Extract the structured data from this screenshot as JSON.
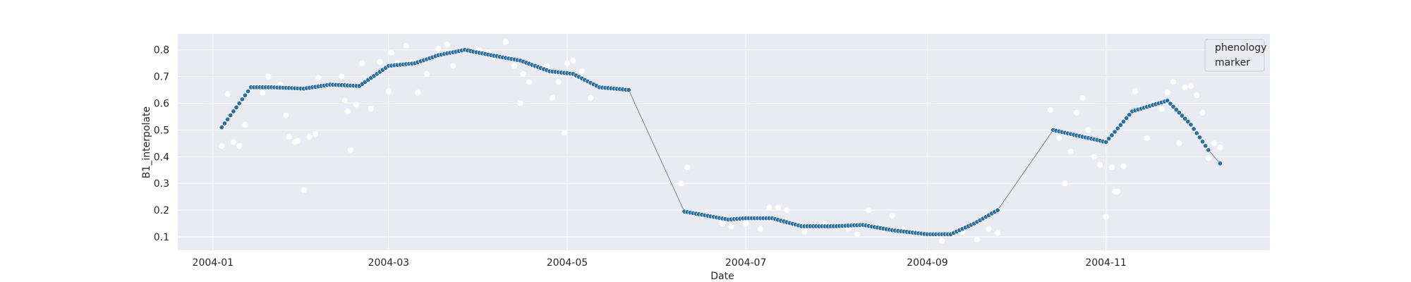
{
  "chart_data": {
    "type": "scatter",
    "xlabel": "Date",
    "ylabel": "B1_interpolate",
    "x_range": [
      "2003-12-20",
      "2004-12-27"
    ],
    "ylim": [
      0.05,
      0.86
    ],
    "x_ticks": [
      "2004-01-01",
      "2004-03-01",
      "2004-05-01",
      "2004-07-01",
      "2004-09-01",
      "2004-11-01"
    ],
    "x_tick_labels": [
      "2004-01",
      "2004-03",
      "2004-05",
      "2004-07",
      "2004-09",
      "2004-11"
    ],
    "y_ticks": [
      0.1,
      0.2,
      0.3,
      0.4,
      0.5,
      0.6,
      0.7,
      0.8
    ],
    "y_tick_labels": [
      "0.1",
      "0.2",
      "0.3",
      "0.4",
      "0.5",
      "0.6",
      "0.7",
      "0.8"
    ],
    "grid": true,
    "legend": {
      "placement": "top-right",
      "entries": [
        "phenology",
        "marker"
      ]
    },
    "colors": {
      "background": "#eaeaf2",
      "grid": "#ffffff",
      "series_line": "#7f7f7f",
      "series_marker": "#2c6f9e",
      "raw_points": "#ffffff"
    },
    "series": [
      {
        "name": "phenology",
        "kind": "line+markers",
        "segments": [
          {
            "start": "2004-01-04",
            "end": "2004-05-22",
            "points": [
              [
                "2004-01-04",
                0.51
              ],
              [
                "2004-01-14",
                0.66
              ],
              [
                "2004-01-21",
                0.66
              ],
              [
                "2004-02-01",
                0.655
              ],
              [
                "2004-02-10",
                0.67
              ],
              [
                "2004-02-20",
                0.665
              ],
              [
                "2004-03-01",
                0.74
              ],
              [
                "2004-03-10",
                0.75
              ],
              [
                "2004-03-18",
                0.78
              ],
              [
                "2004-03-27",
                0.8
              ],
              [
                "2004-04-05",
                0.78
              ],
              [
                "2004-04-15",
                0.76
              ],
              [
                "2004-04-25",
                0.72
              ],
              [
                "2004-05-03",
                0.71
              ],
              [
                "2004-05-12",
                0.66
              ],
              [
                "2004-05-22",
                0.65
              ]
            ]
          },
          {
            "start": "2004-06-10",
            "end": "2004-09-25",
            "points": [
              [
                "2004-06-10",
                0.195
              ],
              [
                "2004-06-20",
                0.175
              ],
              [
                "2004-06-25",
                0.165
              ],
              [
                "2004-07-01",
                0.17
              ],
              [
                "2004-07-10",
                0.17
              ],
              [
                "2004-07-20",
                0.14
              ],
              [
                "2004-08-01",
                0.14
              ],
              [
                "2004-08-10",
                0.145
              ],
              [
                "2004-08-20",
                0.125
              ],
              [
                "2004-09-01",
                0.11
              ],
              [
                "2004-09-09",
                0.11
              ],
              [
                "2004-09-17",
                0.15
              ],
              [
                "2004-09-25",
                0.2
              ]
            ]
          },
          {
            "start": "2004-10-14",
            "end": "2004-12-06",
            "points": [
              [
                "2004-10-14",
                0.5
              ],
              [
                "2004-10-22",
                0.48
              ],
              [
                "2004-11-01",
                0.455
              ],
              [
                "2004-11-10",
                0.57
              ],
              [
                "2004-11-22",
                0.61
              ],
              [
                "2004-11-30",
                0.52
              ],
              [
                "2004-12-06",
                0.425
              ]
            ]
          }
        ],
        "bridges": [
          [
            [
              "2004-05-22",
              0.65
            ],
            [
              "2004-06-10",
              0.195
            ]
          ],
          [
            [
              "2004-09-25",
              0.2
            ],
            [
              "2004-10-14",
              0.5
            ]
          ],
          [
            [
              "2004-12-06",
              0.425
            ],
            [
              "2004-12-10",
              0.375
            ]
          ]
        ],
        "extra_markers": [
          [
            "2004-12-10",
            0.375
          ]
        ]
      },
      {
        "name": "marker",
        "kind": "scatter",
        "points": [
          [
            "2004-01-04",
            0.44
          ],
          [
            "2004-01-06",
            0.635
          ],
          [
            "2004-01-08",
            0.455
          ],
          [
            "2004-01-10",
            0.44
          ],
          [
            "2004-01-12",
            0.52
          ],
          [
            "2004-01-18",
            0.64
          ],
          [
            "2004-01-20",
            0.7
          ],
          [
            "2004-01-24",
            0.67
          ],
          [
            "2004-01-26",
            0.555
          ],
          [
            "2004-01-27",
            0.475
          ],
          [
            "2004-01-29",
            0.455
          ],
          [
            "2004-01-30",
            0.46
          ],
          [
            "2004-02-01",
            0.275
          ],
          [
            "2004-02-03",
            0.475
          ],
          [
            "2004-02-05",
            0.485
          ],
          [
            "2004-02-06",
            0.695
          ],
          [
            "2004-02-14",
            0.7
          ],
          [
            "2004-02-15",
            0.61
          ],
          [
            "2004-02-16",
            0.57
          ],
          [
            "2004-02-17",
            0.425
          ],
          [
            "2004-02-19",
            0.595
          ],
          [
            "2004-02-21",
            0.75
          ],
          [
            "2004-02-24",
            0.58
          ],
          [
            "2004-02-27",
            0.755
          ],
          [
            "2004-03-01",
            0.645
          ],
          [
            "2004-03-02",
            0.79
          ],
          [
            "2004-03-04",
            0.75
          ],
          [
            "2004-03-07",
            0.815
          ],
          [
            "2004-03-09",
            0.755
          ],
          [
            "2004-03-11",
            0.64
          ],
          [
            "2004-03-14",
            0.71
          ],
          [
            "2004-03-18",
            0.805
          ],
          [
            "2004-03-21",
            0.82
          ],
          [
            "2004-03-23",
            0.74
          ],
          [
            "2004-04-01",
            0.8
          ],
          [
            "2004-04-04",
            0.79
          ],
          [
            "2004-04-06",
            0.77
          ],
          [
            "2004-04-10",
            0.83
          ],
          [
            "2004-04-13",
            0.74
          ],
          [
            "2004-04-15",
            0.6
          ],
          [
            "2004-04-16",
            0.71
          ],
          [
            "2004-04-18",
            0.68
          ],
          [
            "2004-04-24",
            0.74
          ],
          [
            "2004-04-26",
            0.62
          ],
          [
            "2004-04-28",
            0.68
          ],
          [
            "2004-04-30",
            0.49
          ],
          [
            "2004-05-01",
            0.75
          ],
          [
            "2004-05-03",
            0.76
          ],
          [
            "2004-05-06",
            0.72
          ],
          [
            "2004-05-09",
            0.62
          ],
          [
            "2004-06-09",
            0.3
          ],
          [
            "2004-06-11",
            0.36
          ],
          [
            "2004-06-16",
            0.18
          ],
          [
            "2004-06-23",
            0.15
          ],
          [
            "2004-06-26",
            0.14
          ],
          [
            "2004-07-01",
            0.15
          ],
          [
            "2004-07-06",
            0.13
          ],
          [
            "2004-07-09",
            0.21
          ],
          [
            "2004-07-12",
            0.21
          ],
          [
            "2004-07-15",
            0.2
          ],
          [
            "2004-07-21",
            0.12
          ],
          [
            "2004-07-28",
            0.15
          ],
          [
            "2004-08-05",
            0.13
          ],
          [
            "2004-08-08",
            0.11
          ],
          [
            "2004-08-12",
            0.2
          ],
          [
            "2004-08-17",
            0.13
          ],
          [
            "2004-08-20",
            0.18
          ],
          [
            "2004-08-24",
            0.13
          ],
          [
            "2004-08-27",
            0.12
          ],
          [
            "2004-09-06",
            0.085
          ],
          [
            "2004-09-13",
            0.12
          ],
          [
            "2004-09-18",
            0.09
          ],
          [
            "2004-09-22",
            0.13
          ],
          [
            "2004-09-25",
            0.115
          ],
          [
            "2004-10-13",
            0.575
          ],
          [
            "2004-10-16",
            0.47
          ],
          [
            "2004-10-18",
            0.3
          ],
          [
            "2004-10-20",
            0.42
          ],
          [
            "2004-10-22",
            0.565
          ],
          [
            "2004-10-24",
            0.62
          ],
          [
            "2004-10-26",
            0.5
          ],
          [
            "2004-10-28",
            0.4
          ],
          [
            "2004-10-30",
            0.37
          ],
          [
            "2004-11-01",
            0.175
          ],
          [
            "2004-11-03",
            0.36
          ],
          [
            "2004-11-04",
            0.27
          ],
          [
            "2004-11-05",
            0.27
          ],
          [
            "2004-11-07",
            0.365
          ],
          [
            "2004-11-11",
            0.645
          ],
          [
            "2004-11-13",
            0.58
          ],
          [
            "2004-11-15",
            0.47
          ],
          [
            "2004-11-17",
            0.6
          ],
          [
            "2004-11-20",
            0.58
          ],
          [
            "2004-11-22",
            0.64
          ],
          [
            "2004-11-24",
            0.68
          ],
          [
            "2004-11-26",
            0.45
          ],
          [
            "2004-11-28",
            0.66
          ],
          [
            "2004-11-30",
            0.665
          ],
          [
            "2004-12-02",
            0.63
          ],
          [
            "2004-12-04",
            0.565
          ],
          [
            "2004-12-06",
            0.395
          ],
          [
            "2004-12-08",
            0.45
          ],
          [
            "2004-12-10",
            0.435
          ]
        ]
      }
    ]
  }
}
